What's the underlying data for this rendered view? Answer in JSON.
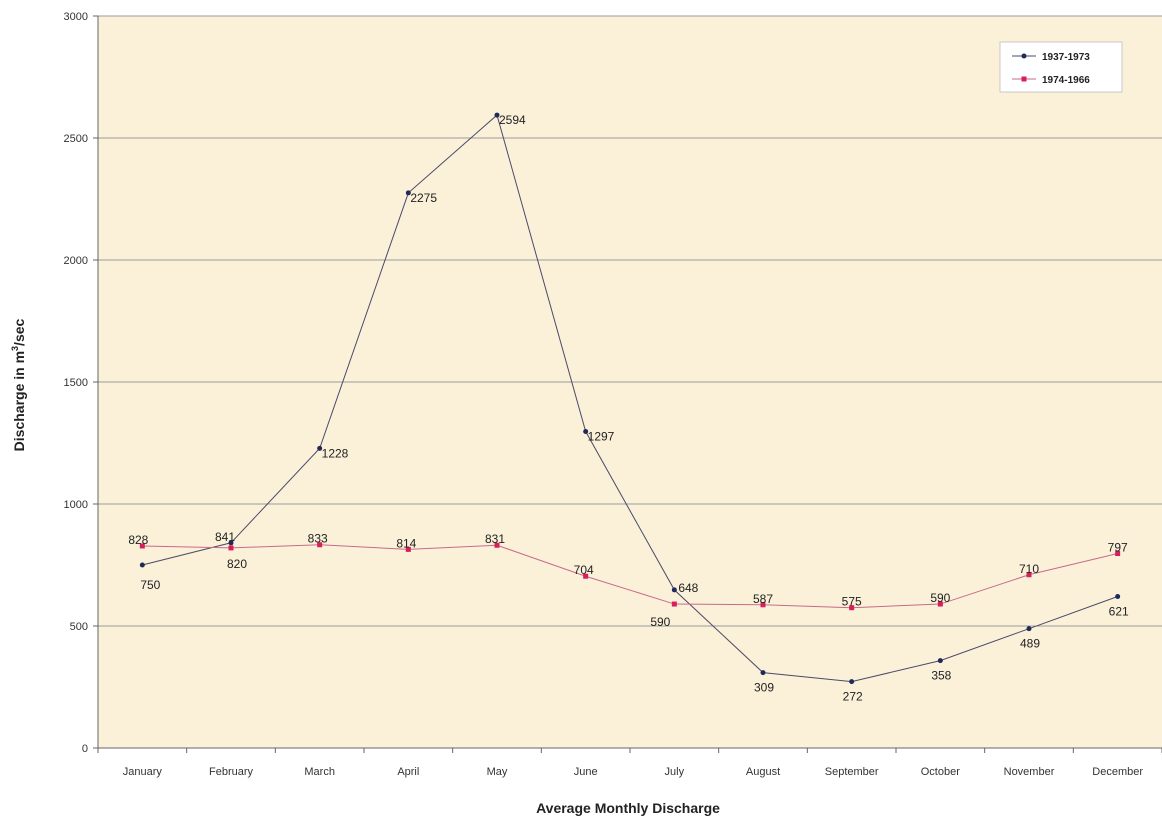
{
  "chart_data": {
    "type": "line",
    "title": "",
    "xlabel": "Average Monthly Discharge",
    "ylabel_main": "Discharge in m",
    "ylabel_sup": "3",
    "ylabel_rest": "/sec",
    "ylim": [
      0,
      3000
    ],
    "yticks": [
      "0",
      "500",
      "1000",
      "1500",
      "2000",
      "2500",
      "3000"
    ],
    "categories": [
      "January",
      "February",
      "March",
      "April",
      "May",
      "June",
      "July",
      "August",
      "September",
      "October",
      "November",
      "December"
    ],
    "grid": true,
    "legend_position": "top-right",
    "series": [
      {
        "name": "1937-1973",
        "color": "#4a4a6a",
        "marker_color": "#1f2a5a",
        "values": [
          750,
          841,
          1228,
          2275,
          2594,
          1297,
          648,
          309,
          272,
          358,
          489,
          621
        ],
        "labels": [
          "750",
          "841",
          "1228",
          "2275",
          "2594",
          "1297",
          "648",
          "309",
          "272",
          "358",
          "489",
          "621"
        ]
      },
      {
        "name": "1974-1966",
        "color": "#c86a8a",
        "marker_color": "#d81f5e",
        "values": [
          828,
          820,
          833,
          814,
          831,
          704,
          590,
          587,
          575,
          590,
          710,
          797
        ],
        "labels": [
          "828",
          "820",
          "833",
          "814",
          "831",
          "704",
          "590",
          "587",
          "575",
          "590",
          "710",
          "797"
        ]
      }
    ],
    "plot_bg": "#fbf1d9",
    "grid_color": "#9a9a9a"
  }
}
